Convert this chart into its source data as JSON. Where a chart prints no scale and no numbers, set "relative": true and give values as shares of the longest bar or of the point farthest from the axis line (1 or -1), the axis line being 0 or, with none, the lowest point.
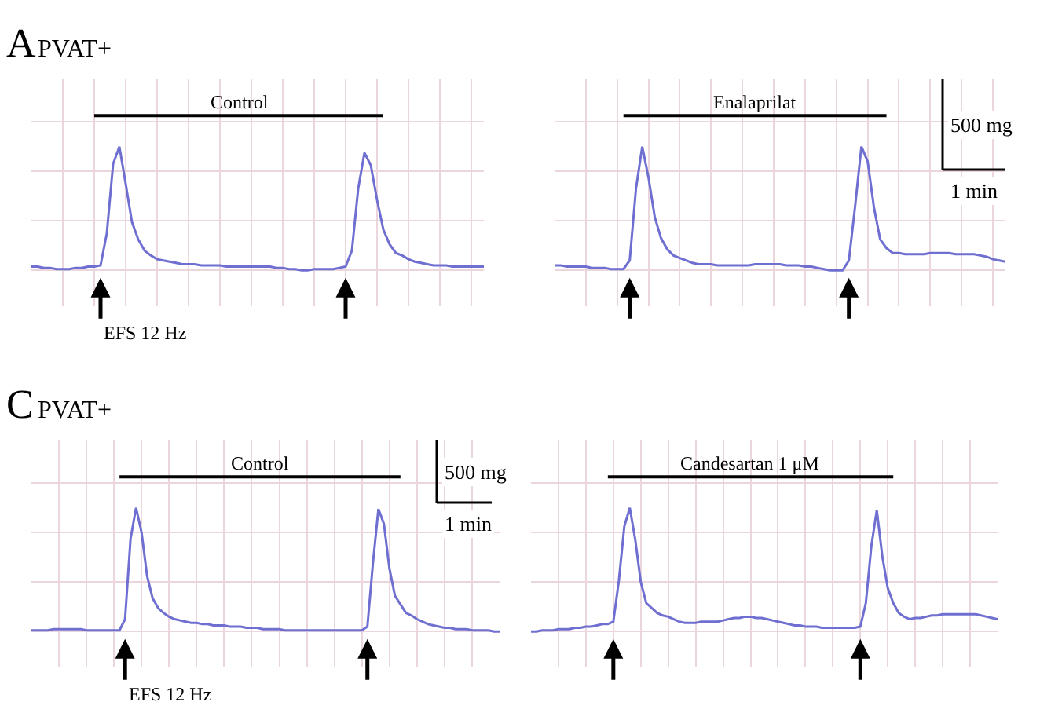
{
  "chart_data": [
    {
      "type": "line",
      "relative": true,
      "title": "A",
      "subtitle": "PVAT+",
      "grid": true,
      "tick_labels": false,
      "categories": [
        null,
        null,
        null,
        null,
        null,
        null,
        null,
        null,
        null,
        null,
        null,
        null,
        null,
        null,
        null,
        null,
        null,
        null,
        null,
        null,
        null,
        null,
        null,
        null,
        null,
        null,
        null,
        null,
        null,
        null,
        null,
        null,
        null,
        null,
        null,
        null,
        null,
        null,
        null,
        null,
        null,
        null,
        null,
        null,
        null,
        null,
        null,
        null,
        null,
        null,
        null,
        null,
        null,
        null,
        null,
        null,
        null,
        null,
        null,
        null,
        null,
        null,
        null,
        null,
        null,
        null,
        null,
        null,
        null,
        null,
        null,
        null,
        null
      ],
      "series": [
        {
          "color": "#6f6fd2",
          "values": [
            0.03,
            0.03,
            0.02,
            0.02,
            0.01,
            0.01,
            0.01,
            0.02,
            0.02,
            0.03,
            0.03,
            0.04,
            0.3,
            0.86,
            1,
            0.7,
            0.39,
            0.25,
            0.16,
            0.12,
            0.09,
            0.08,
            0.07,
            0.06,
            0.05,
            0.05,
            0.05,
            0.04,
            0.04,
            0.04,
            0.04,
            0.03,
            0.03,
            0.03,
            0.03,
            0.03,
            0.03,
            0.03,
            0.03,
            0.02,
            0.02,
            0.01,
            0.01,
            0,
            0,
            0.01,
            0.01,
            0.01,
            0.01,
            0.02,
            0.03,
            0.16,
            0.66,
            0.95,
            0.85,
            0.57,
            0.33,
            0.21,
            0.14,
            0.12,
            0.09,
            0.07,
            0.06,
            0.05,
            0.04,
            0.04,
            0.04,
            0.03,
            0.03,
            0.03,
            0.03,
            0.03,
            0.03
          ]
        }
      ],
      "annotations": [
        "Control",
        "EFS 12 Hz"
      ]
    },
    {
      "type": "line",
      "relative": true,
      "grid": true,
      "tick_labels": false,
      "categories": [
        null,
        null,
        null,
        null,
        null,
        null,
        null,
        null,
        null,
        null,
        null,
        null,
        null,
        null,
        null,
        null,
        null,
        null,
        null,
        null,
        null,
        null,
        null,
        null,
        null,
        null,
        null,
        null,
        null,
        null,
        null,
        null,
        null,
        null,
        null,
        null,
        null,
        null,
        null,
        null,
        null,
        null,
        null,
        null,
        null,
        null,
        null,
        null,
        null,
        null,
        null,
        null,
        null,
        null,
        null,
        null,
        null,
        null,
        null,
        null,
        null,
        null,
        null,
        null,
        null,
        null,
        null,
        null,
        null,
        null,
        null,
        null,
        null
      ],
      "series": [
        {
          "color": "#6f6fd2",
          "values": [
            0.04,
            0.04,
            0.03,
            0.03,
            0.03,
            0.03,
            0.02,
            0.02,
            0.02,
            0.01,
            0.01,
            0.01,
            0.08,
            0.66,
            1,
            0.75,
            0.43,
            0.26,
            0.17,
            0.12,
            0.1,
            0.08,
            0.06,
            0.05,
            0.05,
            0.05,
            0.04,
            0.04,
            0.04,
            0.04,
            0.04,
            0.04,
            0.05,
            0.05,
            0.05,
            0.05,
            0.05,
            0.04,
            0.04,
            0.04,
            0.03,
            0.03,
            0.02,
            0.01,
            0,
            0,
            0,
            0.08,
            0.52,
            1,
            0.88,
            0.51,
            0.25,
            0.18,
            0.14,
            0.14,
            0.13,
            0.13,
            0.13,
            0.13,
            0.14,
            0.14,
            0.14,
            0.14,
            0.13,
            0.13,
            0.13,
            0.13,
            0.12,
            0.11,
            0.09,
            0.08,
            0.07
          ]
        }
      ],
      "annotations": [
        "Enalaprilat",
        "500 mg",
        "1 min"
      ]
    },
    {
      "type": "line",
      "relative": true,
      "title": "C",
      "subtitle": "PVAT+",
      "grid": true,
      "tick_labels": false,
      "categories": [
        null,
        null,
        null,
        null,
        null,
        null,
        null,
        null,
        null,
        null,
        null,
        null,
        null,
        null,
        null,
        null,
        null,
        null,
        null,
        null,
        null,
        null,
        null,
        null,
        null,
        null,
        null,
        null,
        null,
        null,
        null,
        null,
        null,
        null,
        null,
        null,
        null,
        null,
        null,
        null,
        null,
        null,
        null,
        null,
        null,
        null,
        null,
        null,
        null,
        null,
        null,
        null,
        null,
        null,
        null,
        null,
        null,
        null,
        null,
        null,
        null,
        null,
        null,
        null,
        null,
        null,
        null,
        null,
        null,
        null,
        null,
        null,
        null,
        null,
        null,
        null,
        null,
        null,
        null,
        null,
        null,
        null,
        null,
        null,
        null,
        null
      ],
      "series": [
        {
          "color": "#6f6fd2",
          "values": [
            0.01,
            0.01,
            0.01,
            0.01,
            0.02,
            0.02,
            0.02,
            0.02,
            0.02,
            0.02,
            0.01,
            0.01,
            0.01,
            0.01,
            0.01,
            0.01,
            0.01,
            0.1,
            0.75,
            1,
            0.8,
            0.45,
            0.27,
            0.19,
            0.15,
            0.12,
            0.1,
            0.09,
            0.08,
            0.07,
            0.07,
            0.06,
            0.06,
            0.05,
            0.05,
            0.05,
            0.04,
            0.04,
            0.04,
            0.03,
            0.03,
            0.03,
            0.02,
            0.02,
            0.02,
            0.02,
            0.01,
            0.01,
            0.01,
            0.01,
            0.01,
            0.01,
            0.01,
            0.01,
            0.01,
            0.01,
            0.01,
            0.01,
            0.01,
            0.01,
            0.01,
            0.04,
            0.55,
            0.99,
            0.87,
            0.51,
            0.29,
            0.22,
            0.15,
            0.13,
            0.1,
            0.08,
            0.06,
            0.05,
            0.04,
            0.03,
            0.03,
            0.02,
            0.02,
            0.02,
            0.01,
            0.01,
            0.01,
            0.01,
            0,
            0
          ]
        }
      ],
      "annotations": [
        "Control",
        "500 mg",
        "1 min",
        "EFS 12 Hz"
      ]
    },
    {
      "type": "line",
      "relative": true,
      "grid": true,
      "tick_labels": false,
      "categories": [
        null,
        null,
        null,
        null,
        null,
        null,
        null,
        null,
        null,
        null,
        null,
        null,
        null,
        null,
        null,
        null,
        null,
        null,
        null,
        null,
        null,
        null,
        null,
        null,
        null,
        null,
        null,
        null,
        null,
        null,
        null,
        null,
        null,
        null,
        null,
        null,
        null,
        null,
        null,
        null,
        null,
        null,
        null,
        null,
        null,
        null,
        null,
        null,
        null,
        null,
        null,
        null,
        null,
        null,
        null,
        null,
        null,
        null,
        null,
        null,
        null,
        null,
        null,
        null,
        null,
        null,
        null,
        null,
        null,
        null,
        null,
        null,
        null,
        null,
        null,
        null,
        null,
        null,
        null,
        null,
        null,
        null,
        null,
        null,
        null,
        null
      ],
      "series": [
        {
          "color": "#6f6fd2",
          "values": [
            0,
            0,
            0.01,
            0.01,
            0.01,
            0.02,
            0.02,
            0.02,
            0.03,
            0.03,
            0.04,
            0.04,
            0.05,
            0.06,
            0.06,
            0.08,
            0.41,
            0.85,
            1,
            0.74,
            0.4,
            0.23,
            0.19,
            0.15,
            0.13,
            0.12,
            0.1,
            0.08,
            0.07,
            0.07,
            0.07,
            0.08,
            0.08,
            0.08,
            0.08,
            0.09,
            0.1,
            0.11,
            0.11,
            0.12,
            0.12,
            0.11,
            0.11,
            0.1,
            0.09,
            0.08,
            0.07,
            0.06,
            0.05,
            0.05,
            0.04,
            0.04,
            0.04,
            0.03,
            0.03,
            0.03,
            0.03,
            0.03,
            0.03,
            0.03,
            0.04,
            0.23,
            0.69,
            0.98,
            0.61,
            0.35,
            0.23,
            0.15,
            0.12,
            0.1,
            0.11,
            0.11,
            0.12,
            0.13,
            0.13,
            0.14,
            0.14,
            0.14,
            0.14,
            0.14,
            0.14,
            0.14,
            0.13,
            0.12,
            0.11,
            0.1
          ]
        }
      ],
      "annotations": [
        "Candesartan 1 μM"
      ]
    }
  ]
}
